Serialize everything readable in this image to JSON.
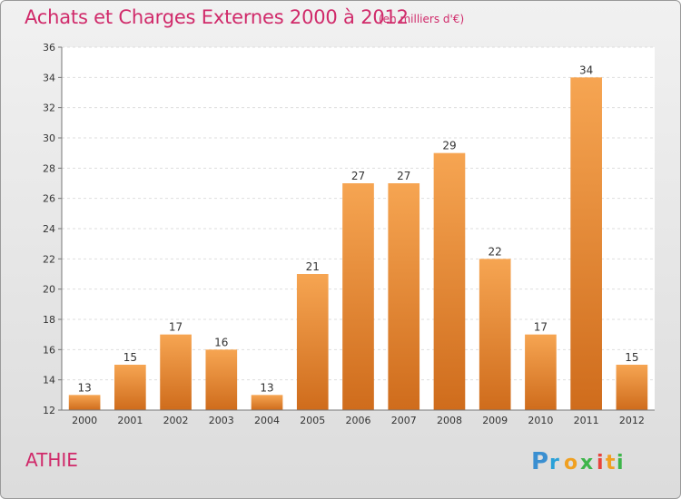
{
  "title": "Achats et Charges Externes 2000 à 2012",
  "subtitle": "(en milliers d'€)",
  "commune": "ATHIE",
  "logo": {
    "letters": [
      "P",
      "r",
      "o",
      "x",
      "i",
      "t",
      "i"
    ],
    "colors": [
      "#3a8fd1",
      "#2aa1d8",
      "#f0a021",
      "#3db54a",
      "#e8433c",
      "#f0a021",
      "#3db54a"
    ]
  },
  "colors": {
    "bar_top": "#f6a552",
    "bar_bottom": "#cf6c1c",
    "text_accent": "#d02a6a"
  },
  "chart_data": {
    "type": "bar",
    "categories": [
      "2000",
      "2001",
      "2002",
      "2003",
      "2004",
      "2005",
      "2006",
      "2007",
      "2008",
      "2009",
      "2010",
      "2011",
      "2012"
    ],
    "values": [
      13,
      15,
      17,
      16,
      13,
      21,
      27,
      27,
      29,
      22,
      17,
      34,
      15
    ],
    "ylim": [
      12,
      36
    ],
    "yticks": [
      12,
      14,
      16,
      18,
      20,
      22,
      24,
      26,
      28,
      30,
      32,
      34,
      36
    ],
    "grid": true,
    "data_labels": true
  }
}
